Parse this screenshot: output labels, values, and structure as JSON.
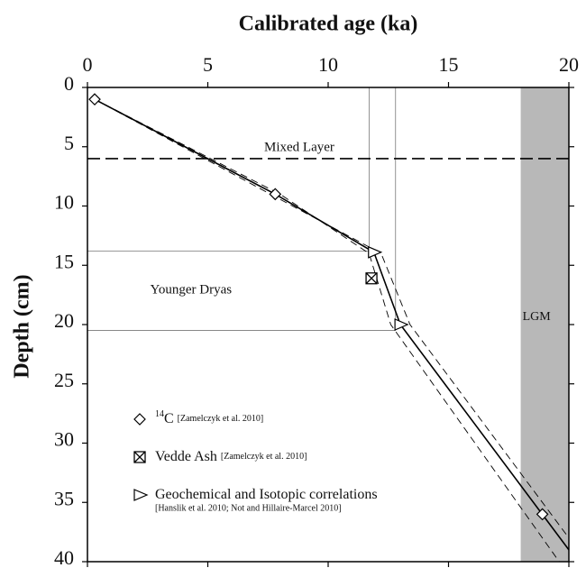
{
  "chart_data": {
    "type": "scatter",
    "title": "Calibrated age (ka)",
    "y_label": "Depth (cm)",
    "xlim": [
      0,
      20
    ],
    "xticks": [
      0,
      5,
      10,
      15,
      20
    ],
    "ylim": [
      0,
      40
    ],
    "yticks": [
      0,
      5,
      10,
      15,
      20,
      25,
      30,
      35,
      40
    ],
    "y_inverted": true,
    "series": [
      {
        "name": {
          "sup": "14",
          "main": "C",
          "ref": "[Zamelczyk et al. 2010]"
        },
        "marker": "diamond",
        "x": [
          0.3,
          7.8,
          18.9
        ],
        "values": [
          1,
          9,
          36
        ]
      },
      {
        "name": {
          "main": "Vedde Ash",
          "ref": "[Zamelczyk et al. 2010]"
        },
        "marker": "boxx",
        "x": [
          11.8
        ],
        "values": [
          16.1
        ]
      },
      {
        "name": {
          "main": "Geochemical and Isotopic correlations",
          "ref": "[Hanslik et al. 2010; Not and Hillaire-Marcel 2010]"
        },
        "marker": "triangle",
        "x": [
          11.9,
          13.0
        ],
        "values": [
          13.9,
          20
        ]
      }
    ],
    "lines": [
      {
        "style": "solid",
        "x": [
          0.3,
          7.8,
          11.9,
          13.0,
          20
        ],
        "values": [
          1,
          9,
          13.9,
          20,
          39
        ]
      },
      {
        "style": "dashed",
        "x": [
          0.3,
          7.6,
          12.2,
          13.4,
          20
        ],
        "values": [
          1,
          9,
          14,
          20,
          38
        ]
      },
      {
        "style": "dashed",
        "x": [
          0.3,
          8.0,
          11.7,
          12.6,
          19.6
        ],
        "values": [
          1,
          9,
          14,
          20,
          40
        ]
      }
    ],
    "mixed_layer": {
      "label": "Mixed Layer",
      "depth": 6
    },
    "younger_dryas": {
      "label": "Younger Dryas",
      "top": 13.8,
      "bottom": 20.5,
      "age_start": 11.7,
      "age_end": 12.8
    },
    "lgm": {
      "label": "LGM",
      "from": 18,
      "to": 20
    }
  }
}
